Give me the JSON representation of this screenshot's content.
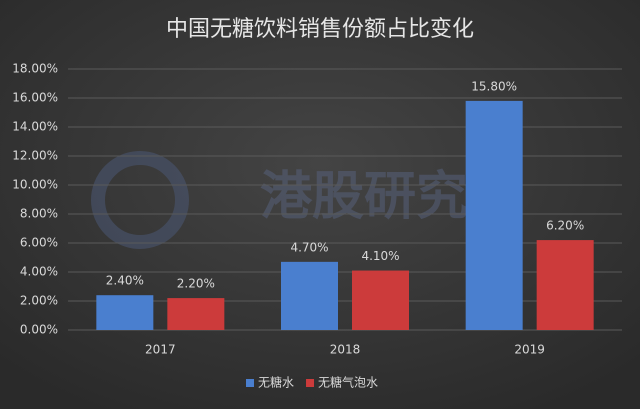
{
  "chart_data": {
    "type": "bar",
    "title": "中国无糖饮料销售份额占比变化",
    "watermark": "港股研究社",
    "categories": [
      "2017",
      "2018",
      "2019"
    ],
    "series": [
      {
        "name": "无糖水",
        "color": "#4a7fcf",
        "values": [
          2.4,
          4.7,
          15.8
        ],
        "value_labels": [
          "2.40%",
          "4.70%",
          "15.80%"
        ]
      },
      {
        "name": "无糖气泡水",
        "color": "#cc3b3b",
        "values": [
          2.2,
          4.1,
          6.2
        ],
        "value_labels": [
          "2.20%",
          "4.10%",
          "6.20%"
        ]
      }
    ],
    "ylim": [
      0,
      18
    ],
    "yticks": [
      {
        "value": 0,
        "label": "0.00%"
      },
      {
        "value": 2,
        "label": "2.00%"
      },
      {
        "value": 4,
        "label": "4.00%"
      },
      {
        "value": 6,
        "label": "6.00%"
      },
      {
        "value": 8,
        "label": "8.00%"
      },
      {
        "value": 10,
        "label": "10.00%"
      },
      {
        "value": 12,
        "label": "12.00%"
      },
      {
        "value": 14,
        "label": "14.00%"
      },
      {
        "value": 16,
        "label": "16.00%"
      },
      {
        "value": 18,
        "label": "18.00%"
      }
    ],
    "grid": true,
    "legend": "bottom"
  }
}
